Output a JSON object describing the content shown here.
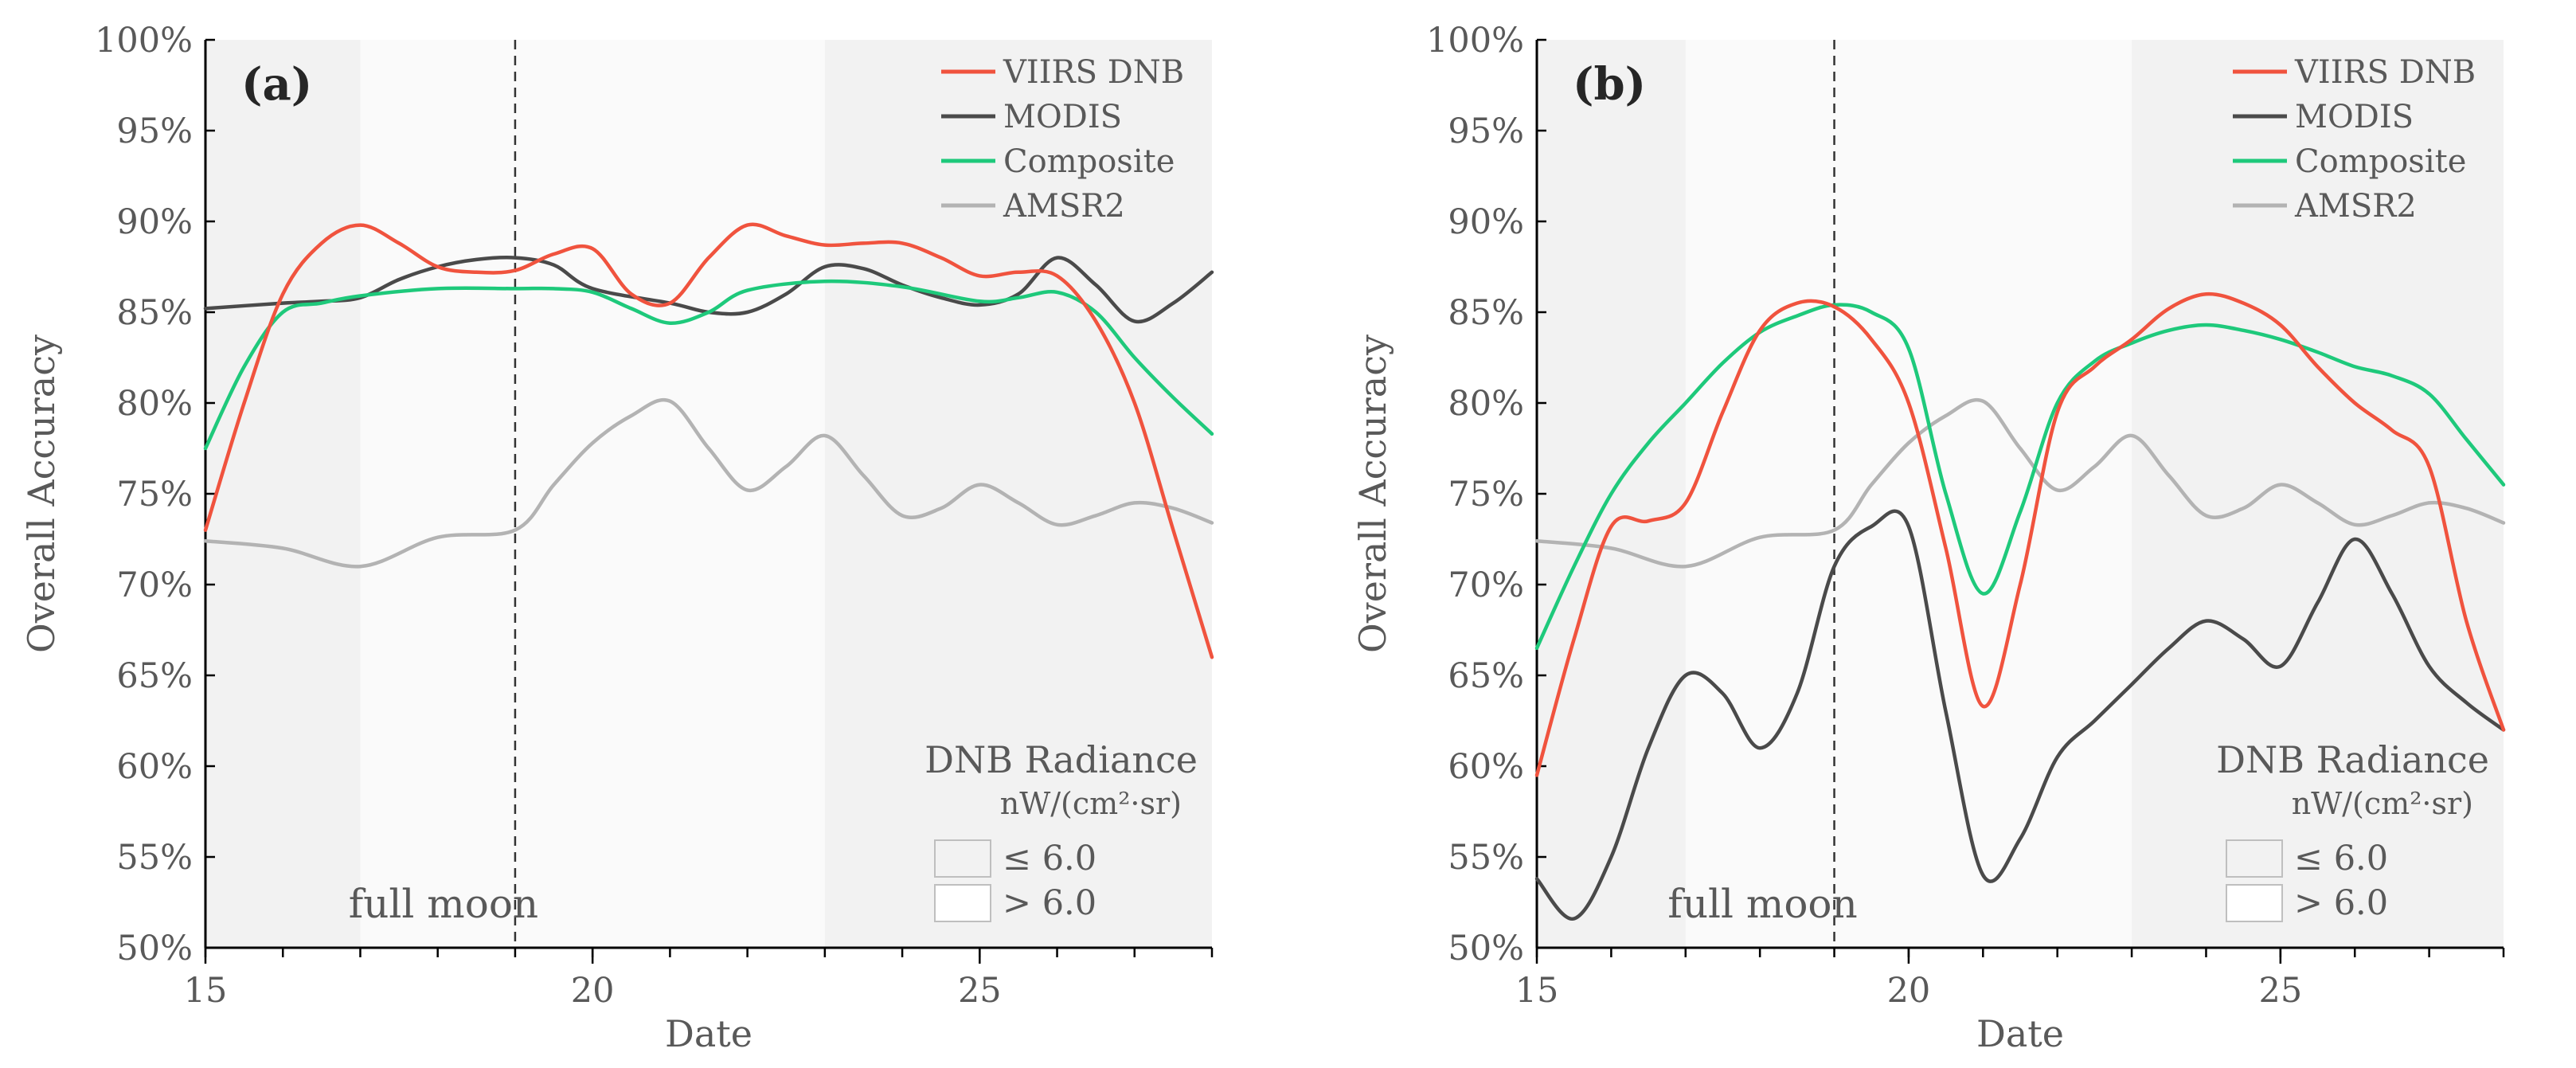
{
  "chart_data": [
    {
      "type": "line",
      "panel_label": "(a)",
      "xlabel": "Date",
      "ylabel": "Overall Accuracy",
      "xlim": [
        15,
        28
      ],
      "ylim": [
        50,
        100
      ],
      "x_ticks": [
        "15",
        "20",
        "25"
      ],
      "y_ticks": [
        "50%",
        "55%",
        "60%",
        "65%",
        "70%",
        "75%",
        "80%",
        "85%",
        "90%",
        "95%",
        "100%"
      ],
      "grid": false,
      "legend_position": "top-right",
      "shaded_ranges": [
        [
          15,
          17
        ],
        [
          23,
          28
        ]
      ],
      "light_ranges": [
        [
          17,
          23
        ]
      ],
      "full_moon": {
        "x": 19,
        "label": "full moon"
      },
      "series": [
        {
          "name": "VIIRS DNB",
          "color": "#f0533e",
          "x": [
            15,
            15.5,
            16,
            16.5,
            17,
            17.5,
            18,
            18.5,
            19,
            19.5,
            20,
            20.5,
            21,
            21.5,
            22,
            22.5,
            23,
            23.5,
            24,
            24.5,
            25,
            25.5,
            26,
            26.5,
            27,
            27.5,
            28
          ],
          "values": [
            73,
            80,
            86,
            88.8,
            89.8,
            88.8,
            87.5,
            87.2,
            87.3,
            88.2,
            88.5,
            86,
            85.5,
            88,
            89.8,
            89.2,
            88.7,
            88.8,
            88.8,
            88,
            87,
            87.2,
            87,
            84.5,
            80,
            73,
            66
          ]
        },
        {
          "name": "MODIS",
          "color": "#4a4a4a",
          "x": [
            15,
            16,
            16.5,
            17,
            17.5,
            18,
            18.5,
            19,
            19.5,
            20,
            21,
            21.5,
            22,
            22.5,
            23,
            23.5,
            24,
            24.5,
            25,
            25.5,
            26,
            26.5,
            27,
            27.5,
            28
          ],
          "values": [
            85.2,
            85.5,
            85.6,
            85.8,
            86.8,
            87.5,
            87.9,
            88,
            87.6,
            86.3,
            85.5,
            85,
            85,
            86,
            87.5,
            87.4,
            86.5,
            85.8,
            85.4,
            86,
            88,
            86.5,
            84.5,
            85.5,
            87.2
          ]
        },
        {
          "name": "Composite",
          "color": "#1ec97b",
          "x": [
            15,
            15.5,
            16,
            16.5,
            17,
            18,
            19,
            19.5,
            20,
            20.5,
            21,
            21.5,
            22,
            23,
            24,
            25,
            25.5,
            26,
            26.5,
            27,
            27.5,
            28
          ],
          "values": [
            77.5,
            82,
            85,
            85.5,
            85.9,
            86.3,
            86.3,
            86.3,
            86.1,
            85.2,
            84.4,
            85,
            86.2,
            86.7,
            86.4,
            85.6,
            85.8,
            86.1,
            85,
            82.5,
            80.3,
            78.3
          ]
        },
        {
          "name": "AMSR2",
          "color": "#b3b3b3",
          "x": [
            15,
            16,
            17,
            18,
            19,
            19.5,
            20,
            20.5,
            21,
            21.5,
            22,
            22.5,
            23,
            23.5,
            24,
            24.5,
            25,
            25.5,
            26,
            26.5,
            27,
            27.5,
            28
          ],
          "values": [
            72.4,
            72,
            71,
            72.6,
            73,
            75.5,
            77.8,
            79.3,
            80.1,
            77.5,
            75.2,
            76.5,
            78.2,
            76,
            73.8,
            74.2,
            75.5,
            74.5,
            73.3,
            73.8,
            74.5,
            74.2,
            73.4
          ]
        }
      ],
      "dnb_box": {
        "title": "DNB Radiance",
        "unit": "nW/(cm²·sr)",
        "items": [
          "≤ 6.0",
          "> 6.0"
        ],
        "item_colors": [
          "#f2f2f2",
          "#ffffff"
        ]
      }
    },
    {
      "type": "line",
      "panel_label": "(b)",
      "xlabel": "Date",
      "ylabel": "Overall Accuracy",
      "xlim": [
        15,
        28
      ],
      "ylim": [
        50,
        100
      ],
      "x_ticks": [
        "15",
        "20",
        "25"
      ],
      "y_ticks": [
        "50%",
        "55%",
        "60%",
        "65%",
        "70%",
        "75%",
        "80%",
        "85%",
        "90%",
        "95%",
        "100%"
      ],
      "grid": false,
      "legend_position": "top-right",
      "shaded_ranges": [
        [
          15,
          17
        ],
        [
          23,
          28
        ]
      ],
      "light_ranges": [
        [
          17,
          23
        ]
      ],
      "full_moon": {
        "x": 19,
        "label": "full moon"
      },
      "series": [
        {
          "name": "VIIRS DNB",
          "color": "#f0533e",
          "x": [
            15,
            15.5,
            16,
            16.5,
            17,
            17.5,
            18,
            18.5,
            19,
            19.5,
            20,
            20.5,
            21,
            21.5,
            22,
            22.5,
            23,
            23.5,
            24,
            24.5,
            25,
            25.5,
            26,
            26.5,
            27,
            27.5,
            28
          ],
          "values": [
            59.5,
            67,
            73.2,
            73.5,
            74.5,
            79.5,
            84,
            85.5,
            85.3,
            83.5,
            80,
            72,
            63.3,
            70,
            79.5,
            82,
            83.5,
            85.2,
            86,
            85.5,
            84.3,
            82,
            80,
            78.5,
            76.5,
            68,
            62
          ]
        },
        {
          "name": "MODIS",
          "color": "#4a4a4a",
          "x": [
            15,
            15.5,
            16,
            16.5,
            17,
            17.5,
            18,
            18.5,
            19,
            19.5,
            20,
            20.5,
            21,
            21.5,
            22,
            22.5,
            23,
            23.5,
            24,
            24.5,
            25,
            25.5,
            26,
            26.5,
            27,
            27.5,
            28
          ],
          "values": [
            53.8,
            51.6,
            55,
            61,
            65,
            64,
            61,
            64,
            71,
            73.2,
            73.2,
            63,
            54,
            56,
            60.5,
            62.5,
            64.5,
            66.5,
            68,
            67,
            65.5,
            69,
            72.5,
            69.5,
            65.5,
            63.5,
            62
          ]
        },
        {
          "name": "Composite",
          "color": "#1ec97b",
          "x": [
            15,
            15.5,
            16,
            16.5,
            17,
            17.5,
            18,
            18.5,
            19,
            19.5,
            20,
            20.5,
            21,
            21.5,
            22,
            22.5,
            23,
            23.5,
            24,
            24.5,
            25,
            25.5,
            26,
            26.5,
            27,
            27.5,
            28
          ],
          "values": [
            66.5,
            71,
            75,
            77.8,
            80,
            82.2,
            83.9,
            84.8,
            85.4,
            85,
            83,
            75,
            69.5,
            74,
            80,
            82.3,
            83.3,
            84,
            84.3,
            84,
            83.5,
            82.8,
            82,
            81.5,
            80.5,
            78,
            75.5
          ]
        },
        {
          "name": "AMSR2",
          "color": "#b3b3b3",
          "x": [
            15,
            16,
            17,
            18,
            19,
            19.5,
            20,
            20.5,
            21,
            21.5,
            22,
            22.5,
            23,
            23.5,
            24,
            24.5,
            25,
            25.5,
            26,
            26.5,
            27,
            27.5,
            28
          ],
          "values": [
            72.4,
            72,
            71,
            72.6,
            73,
            75.5,
            77.8,
            79.3,
            80.1,
            77.5,
            75.2,
            76.5,
            78.2,
            76,
            73.8,
            74.2,
            75.5,
            74.5,
            73.3,
            73.8,
            74.5,
            74.2,
            73.4
          ]
        }
      ],
      "dnb_box": {
        "title": "DNB Radiance",
        "unit": "nW/(cm²·sr)",
        "items": [
          "≤ 6.0",
          "> 6.0"
        ],
        "item_colors": [
          "#f2f2f2",
          "#ffffff"
        ]
      }
    }
  ],
  "colors": {
    "shade_dark": "#f2f2f2",
    "shade_light": "#fafafa",
    "axis": "#000000",
    "text": "#595959"
  }
}
